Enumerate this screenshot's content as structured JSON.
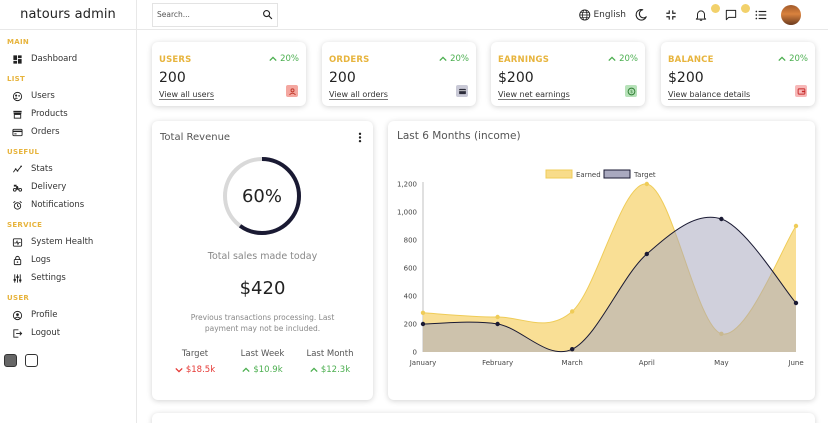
{
  "app": {
    "logo": "natours admin"
  },
  "sidebar": {
    "sections": [
      {
        "title": "MAIN",
        "items": [
          {
            "label": "Dashboard",
            "icon": "dashboard-icon"
          }
        ]
      },
      {
        "title": "LIST",
        "items": [
          {
            "label": "Users",
            "icon": "users-icon"
          },
          {
            "label": "Products",
            "icon": "store-icon"
          },
          {
            "label": "Orders",
            "icon": "credit-card-icon"
          }
        ]
      },
      {
        "title": "USEFUL",
        "items": [
          {
            "label": "Stats",
            "icon": "stats-icon"
          },
          {
            "label": "Delivery",
            "icon": "delivery-icon"
          },
          {
            "label": "Notifications",
            "icon": "alarm-icon"
          }
        ]
      },
      {
        "title": "SERVICE",
        "items": [
          {
            "label": "System Health",
            "icon": "health-icon"
          },
          {
            "label": "Logs",
            "icon": "logs-icon"
          },
          {
            "label": "Settings",
            "icon": "settings-icon"
          }
        ]
      },
      {
        "title": "USER",
        "items": [
          {
            "label": "Profile",
            "icon": "profile-icon"
          },
          {
            "label": "Logout",
            "icon": "logout-icon"
          }
        ]
      }
    ]
  },
  "topbar": {
    "search_placeholder": "Search...",
    "language": "English"
  },
  "widgets": [
    {
      "title": "USERS",
      "percent": "20%",
      "value": "200",
      "link": "View all users",
      "icon": "person-icon",
      "icon_color": "#f4a7a0",
      "icon_fg": "#c0392b"
    },
    {
      "title": "ORDERS",
      "percent": "20%",
      "value": "200",
      "link": "View all orders",
      "icon": "cart-icon",
      "icon_color": "#c9c9d6",
      "icon_fg": "#2c2c3a"
    },
    {
      "title": "EARNINGS",
      "percent": "20%",
      "value": "$200",
      "link": "View net earnings",
      "icon": "dollar-icon",
      "icon_color": "#b7e2b9",
      "icon_fg": "#2e7d32"
    },
    {
      "title": "BALANCE",
      "percent": "20%",
      "value": "$200",
      "link": "View balance details",
      "icon": "wallet-icon",
      "icon_color": "#f7b8b8",
      "icon_fg": "#c62828"
    }
  ],
  "revenue": {
    "title": "Total Revenue",
    "progress": 60,
    "progress_label": "60%",
    "subtitle": "Total sales made today",
    "amount": "$420",
    "description": "Previous transactions processing. Last payment may not be included.",
    "stats": [
      {
        "title": "Target",
        "value": "$18.5k",
        "trend": "down"
      },
      {
        "title": "Last Week",
        "value": "$10.9k",
        "trend": "up"
      },
      {
        "title": "Last Month",
        "value": "$12.3k",
        "trend": "up"
      }
    ],
    "colors": {
      "ring": "#1a1a33",
      "track": "#d9d9d9",
      "down": "#e53935",
      "up": "#4caf50"
    }
  },
  "chart_title": "Last 6 Months (income)",
  "chart_data": {
    "type": "area",
    "categories": [
      "January",
      "February",
      "March",
      "April",
      "May",
      "June"
    ],
    "series": [
      {
        "name": "Earned",
        "values": [
          280,
          250,
          290,
          1200,
          130,
          900
        ],
        "fill": "#f8dc8a",
        "stroke": "#efcc58"
      },
      {
        "name": "Target",
        "values": [
          200,
          200,
          20,
          700,
          950,
          350
        ],
        "fill": "#a9a9bf",
        "stroke": "#1a1a33"
      }
    ],
    "ylim": [
      0,
      1200
    ],
    "yticks": [
      "0",
      "200",
      "400",
      "600",
      "800",
      "1,000",
      "1,200"
    ],
    "legend": "top-center",
    "grid": false
  }
}
